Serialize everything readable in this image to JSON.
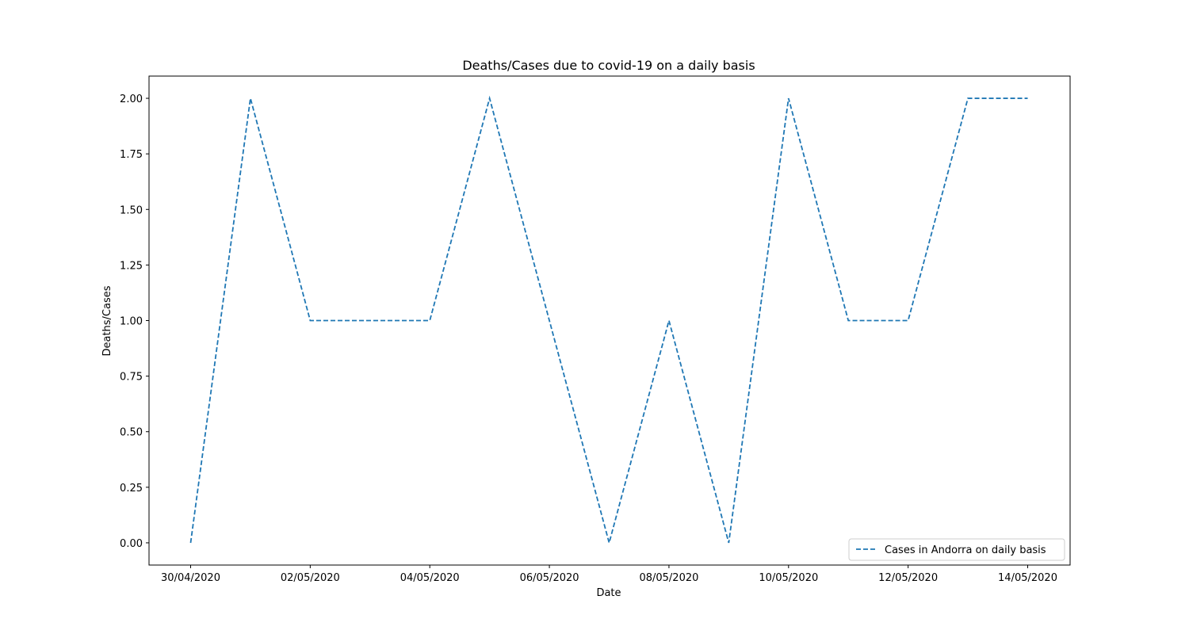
{
  "chart_data": {
    "type": "line",
    "title": "Deaths/Cases due to covid-19 on a daily basis",
    "xlabel": "Date",
    "ylabel": "Deaths/Cases",
    "x": [
      "30/04/2020",
      "01/05/2020",
      "02/05/2020",
      "03/05/2020",
      "04/05/2020",
      "05/05/2020",
      "06/05/2020",
      "07/05/2020",
      "08/05/2020",
      "09/05/2020",
      "10/05/2020",
      "11/05/2020",
      "12/05/2020",
      "13/05/2020",
      "14/05/2020"
    ],
    "x_ticks": [
      "30/04/2020",
      "02/05/2020",
      "04/05/2020",
      "06/05/2020",
      "08/05/2020",
      "10/05/2020",
      "12/05/2020",
      "14/05/2020"
    ],
    "y_ticks": [
      "0.00",
      "0.25",
      "0.50",
      "0.75",
      "1.00",
      "1.25",
      "1.50",
      "1.75",
      "2.00"
    ],
    "ylim": [
      -0.1,
      2.1
    ],
    "series": [
      {
        "name": "Cases in Andorra on daily basis",
        "values": [
          0,
          2,
          1,
          1,
          1,
          2,
          1,
          0,
          1,
          0,
          2,
          1,
          1,
          2,
          2
        ],
        "color": "#1f77b4",
        "line_style": "dashed"
      }
    ],
    "legend_position": "lower-right",
    "grid": false
  }
}
